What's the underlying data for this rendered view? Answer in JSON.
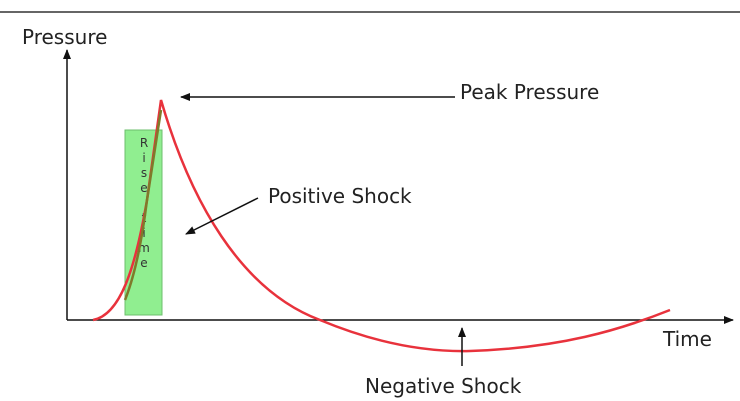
{
  "axes": {
    "y_label": "Pressure",
    "x_label": "Time"
  },
  "annotations": {
    "peak": "Peak Pressure",
    "positive": "Positive Shock",
    "negative": "Negative Shock",
    "rise": "Rise time"
  }
}
